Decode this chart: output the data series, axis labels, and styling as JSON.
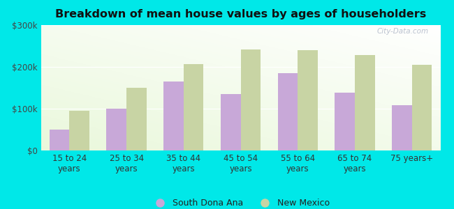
{
  "title": "Breakdown of mean house values by ages of householders",
  "categories": [
    "15 to 24\nyears",
    "25 to 34\nyears",
    "35 to 44\nyears",
    "45 to 54\nyears",
    "55 to 64\nyears",
    "65 to 74\nyears",
    "75 years+"
  ],
  "south_dona_ana": [
    50000,
    100000,
    165000,
    135000,
    185000,
    138000,
    108000
  ],
  "new_mexico": [
    95000,
    150000,
    207000,
    242000,
    240000,
    228000,
    205000
  ],
  "bar_color_sda": "#c8a8d8",
  "bar_color_nm": "#c8d4a4",
  "background_color": "#00e8e8",
  "ylim": [
    0,
    300000
  ],
  "yticks": [
    0,
    100000,
    200000,
    300000
  ],
  "ytick_labels": [
    "$0",
    "$100k",
    "$200k",
    "$300k"
  ],
  "legend_labels": [
    "South Dona Ana",
    "New Mexico"
  ],
  "watermark": "City-Data.com",
  "figsize": [
    6.5,
    3.0
  ],
  "dpi": 100
}
